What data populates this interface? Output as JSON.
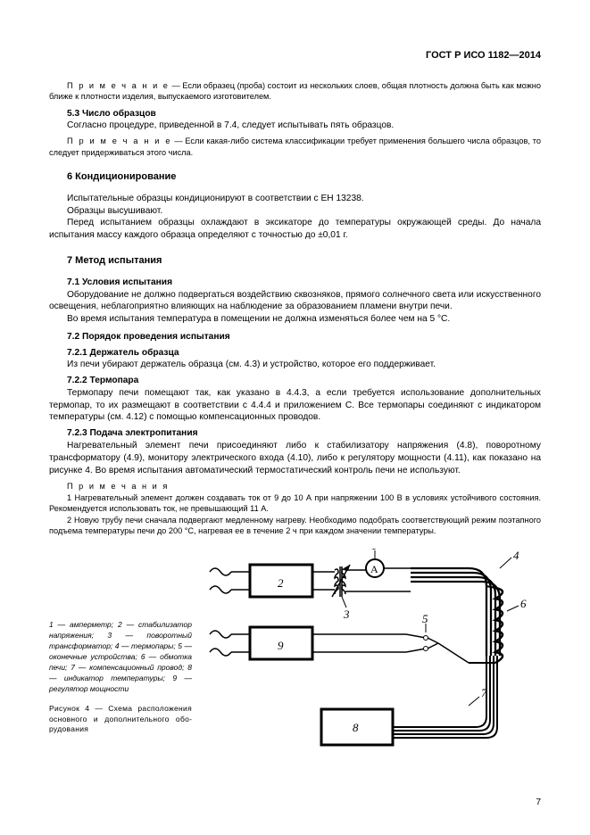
{
  "header": "ГОСТ Р ИСО 1182—2014",
  "note1_label": "П р и м е ч а н и е",
  "note1_text": " — Если образец (проба) состоит из нескольких слоев, общая плотность должна быть как можно ближе к плотности изделия, выпускаемого изготовителем.",
  "s5_3_head": "5.3  Число образцов",
  "s5_3_text": "Согласно процедуре, приведенной в 7.4, следует испытывать пять образцов.",
  "note2_label": "П р и м е ч а н и е",
  "note2_text": " — Если какая-либо система классификации требует применения большего числа образцов, то следует придерживаться этого числа.",
  "s6_head": "6   Кондиционирование",
  "s6_p1": "Испытательные образцы кондиционируют в соответствии с ЕН 13238.",
  "s6_p2": "Образцы высушивают.",
  "s6_p3": "Перед испытанием образцы охлаждают в эксикаторе до температуры окружающей среды. До начала испытания массу каждого образца определяют с точностью до ±0,01 г.",
  "s7_head": "7   Метод испытания",
  "s7_1_head": "7.1  Условия испытания",
  "s7_1_p1": "Оборудование не должно подвергаться воздействию сквозняков, прямого солнечного света или искусственного освещения, неблагоприятно влияющих на наблюдение за образованием пламени внутри печи.",
  "s7_1_p2": "Во время испытания температура в помещении не должна изменяться более чем на 5 °С.",
  "s7_2_head": "7.2  Порядок проведения испытания",
  "s7_2_1_head": "7.2.1  Держатель образца",
  "s7_2_1_p": "Из печи убирают держатель образца (см. 4.3) и устройство, которое его поддерживает.",
  "s7_2_2_head": "7.2.2  Термопара",
  "s7_2_2_p": "Термопару печи помещают так, как указано в 4.4.3, а если требуется использование дополнительных термопар, то их размещают в соответствии с 4.4.4 и приложением С. Все термопары соединяют с индикатором температуры (см. 4.12) с помощью компенсационных проводов.",
  "s7_2_3_head": "7.2.3  Подача электропитания",
  "s7_2_3_p": "Нагревательный элемент печи присоединяют либо к стабилизатору напряжения (4.8), поворотному трансформатору (4.9), монитору электрического входа (4.10), либо к регулятору мощности (4.11), как показано на рисунке 4. Во время испытания автоматический термостатический контроль печи не используют.",
  "notes_label": "П р и м е ч а н и я",
  "notes_1": "1  Нагревательный элемент должен создавать ток от 9 до 10 А при напряжении 100 В в условиях устойчивого состояния. Рекомендуется использовать ток, не превышающий 11 А.",
  "notes_2": "2  Новую трубу печи сначала подвергают медленному нагреву. Необходимо подобрать соответствующий режим поэтапного подъема температуры печи до 200 °С, нагревая ее в течение 2 ч при каждом значении температуры.",
  "fig_legend": "1 — амперметр;   2 — стабилизатор напряжения; 3 — поворотный трансфор­матор;  4 — термопары;  5 — оконечные устройства;  6 — обмотка печи;  7 — ком­пенсационный провод;  8 — индикатор температуры;  9 — регулятор мощности",
  "fig_title": "Рисунок 4 — Схема расположения основного и дополнительного обо­рудования",
  "pagenum": "7",
  "diagram": {
    "colors": {
      "stroke": "#000000",
      "fill": "#ffffff"
    },
    "stroke_width": 1.5,
    "heavy_stroke_width": 3,
    "labels": {
      "l1": "1",
      "l2": "2",
      "l3": "3",
      "l4": "4",
      "l5": "5",
      "l6": "6",
      "l7": "7",
      "l8": "8",
      "l9": "9",
      "A": "A"
    },
    "label_fontsize": 13,
    "label_style": "italic"
  }
}
